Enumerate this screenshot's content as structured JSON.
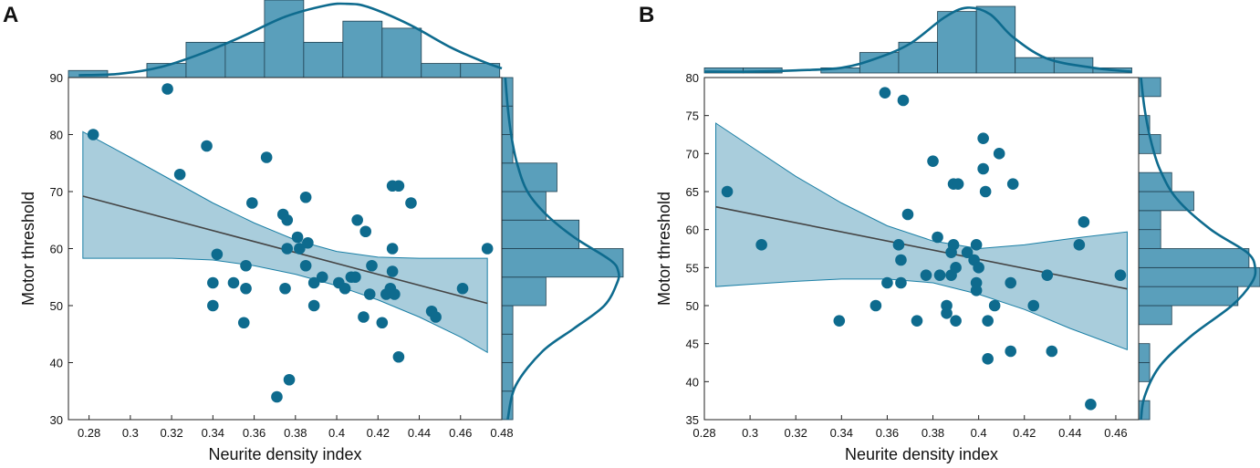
{
  "colors": {
    "point": "#0e6b8e",
    "hist_fill": "#5a9fbb",
    "hist_edge": "#1f3f4f",
    "band_fill": "#a9cddc",
    "band_edge": "#1a7fa5",
    "kde": "#0e6b8e",
    "fit_line": "#444444"
  },
  "chart_data": [
    {
      "panel": "A",
      "type": "scatter",
      "xlabel": "Neurite density index",
      "ylabel": "Motor threshold",
      "xlim": [
        0.27,
        0.48
      ],
      "ylim": [
        30,
        90
      ],
      "xticks": [
        0.28,
        0.3,
        0.32,
        0.34,
        0.36,
        0.38,
        0.4,
        0.42,
        0.44,
        0.46,
        0.48
      ],
      "xtick_labels": [
        "0.28",
        "0.3",
        "0.32",
        "0.34",
        "0.36",
        "0.38",
        "0.4",
        "0.42",
        "0.44",
        "0.46",
        "0.48"
      ],
      "yticks": [
        30,
        40,
        50,
        60,
        70,
        80,
        90
      ],
      "ytick_labels": [
        "30",
        "40",
        "50",
        "60",
        "70",
        "80",
        "90"
      ],
      "points": [
        [
          0.282,
          80
        ],
        [
          0.318,
          88
        ],
        [
          0.324,
          73
        ],
        [
          0.337,
          78
        ],
        [
          0.366,
          76
        ],
        [
          0.342,
          59
        ],
        [
          0.34,
          54
        ],
        [
          0.34,
          50
        ],
        [
          0.35,
          54
        ],
        [
          0.356,
          53
        ],
        [
          0.356,
          57
        ],
        [
          0.355,
          47
        ],
        [
          0.359,
          68
        ],
        [
          0.374,
          66
        ],
        [
          0.376,
          65
        ],
        [
          0.376,
          60
        ],
        [
          0.375,
          53
        ],
        [
          0.377,
          37
        ],
        [
          0.371,
          34
        ],
        [
          0.381,
          62
        ],
        [
          0.382,
          60
        ],
        [
          0.385,
          69
        ],
        [
          0.386,
          61
        ],
        [
          0.385,
          57
        ],
        [
          0.389,
          54
        ],
        [
          0.389,
          50
        ],
        [
          0.393,
          55
        ],
        [
          0.401,
          54
        ],
        [
          0.404,
          53
        ],
        [
          0.407,
          55
        ],
        [
          0.409,
          55
        ],
        [
          0.41,
          65
        ],
        [
          0.413,
          48
        ],
        [
          0.414,
          63
        ],
        [
          0.417,
          57
        ],
        [
          0.416,
          52
        ],
        [
          0.422,
          47
        ],
        [
          0.424,
          52
        ],
        [
          0.426,
          53
        ],
        [
          0.427,
          60
        ],
        [
          0.427,
          56
        ],
        [
          0.428,
          52
        ],
        [
          0.427,
          71
        ],
        [
          0.43,
          71
        ],
        [
          0.43,
          41
        ],
        [
          0.436,
          68
        ],
        [
          0.446,
          49
        ],
        [
          0.448,
          48
        ],
        [
          0.461,
          53
        ],
        [
          0.473,
          60
        ]
      ],
      "fit": {
        "x": [
          0.277,
          0.473
        ],
        "y": [
          69.2,
          50.4
        ]
      },
      "ci_band": {
        "x": [
          0.277,
          0.3,
          0.32,
          0.34,
          0.36,
          0.38,
          0.4,
          0.42,
          0.44,
          0.46,
          0.473
        ],
        "upper": [
          80.5,
          76.0,
          72.0,
          68.0,
          64.5,
          61.5,
          59.5,
          58.5,
          58.3,
          58.3,
          58.3
        ],
        "lower": [
          58.3,
          58.3,
          58.3,
          58.0,
          57.0,
          55.5,
          53.5,
          51.0,
          48.0,
          44.5,
          41.8
        ]
      },
      "top_hist": {
        "edges": [
          0.27,
          0.289,
          0.308,
          0.327,
          0.346,
          0.365,
          0.384,
          0.403,
          0.422,
          0.441,
          0.46,
          0.479
        ],
        "counts": [
          1,
          0,
          2,
          5,
          5,
          11,
          5,
          8,
          7,
          2,
          2
        ]
      },
      "right_hist": {
        "edges": [
          30,
          35,
          40,
          45,
          50,
          55,
          60,
          65,
          70,
          75,
          80,
          85,
          90
        ],
        "counts": [
          1,
          1,
          1,
          1,
          4,
          11,
          7,
          4,
          5,
          1,
          1,
          1
        ]
      },
      "top_kde": {
        "x": [
          0.275,
          0.295,
          0.315,
          0.335,
          0.355,
          0.375,
          0.395,
          0.405,
          0.415,
          0.435,
          0.455,
          0.47,
          0.48
        ],
        "density": [
          0.03,
          0.05,
          0.14,
          0.32,
          0.55,
          0.8,
          0.95,
          0.97,
          0.93,
          0.7,
          0.4,
          0.22,
          0.12
        ]
      },
      "right_kde": {
        "y": [
          30,
          36,
          42,
          46,
          50,
          54,
          56,
          58,
          62,
          66,
          70,
          75,
          80,
          85,
          90
        ],
        "density": [
          0.05,
          0.12,
          0.35,
          0.62,
          0.88,
          0.99,
          1.0,
          0.93,
          0.62,
          0.38,
          0.22,
          0.13,
          0.08,
          0.05,
          0.03
        ]
      }
    },
    {
      "panel": "B",
      "type": "scatter",
      "xlabel": "Neurite density index",
      "ylabel": "Motor threshold",
      "xlim": [
        0.28,
        0.47
      ],
      "ylim": [
        35,
        80
      ],
      "xticks": [
        0.28,
        0.3,
        0.32,
        0.34,
        0.36,
        0.38,
        0.4,
        0.42,
        0.44,
        0.46
      ],
      "xtick_labels": [
        "0.28",
        "0.3",
        "0.32",
        "0.34",
        "0.36",
        "0.38",
        "0.4",
        "0.42",
        "0.44",
        "0.46"
      ],
      "yticks": [
        35,
        40,
        45,
        50,
        55,
        60,
        65,
        70,
        75,
        80
      ],
      "ytick_labels": [
        "35",
        "40",
        "45",
        "50",
        "55",
        "60",
        "65",
        "70",
        "75",
        "80"
      ],
      "points": [
        [
          0.29,
          65
        ],
        [
          0.305,
          58
        ],
        [
          0.339,
          48
        ],
        [
          0.355,
          50
        ],
        [
          0.359,
          78
        ],
        [
          0.36,
          53
        ],
        [
          0.365,
          58
        ],
        [
          0.366,
          56
        ],
        [
          0.366,
          53
        ],
        [
          0.367,
          77
        ],
        [
          0.369,
          62
        ],
        [
          0.373,
          48
        ],
        [
          0.377,
          54
        ],
        [
          0.38,
          69
        ],
        [
          0.382,
          59
        ],
        [
          0.383,
          54
        ],
        [
          0.386,
          50
        ],
        [
          0.386,
          49
        ],
        [
          0.388,
          54
        ],
        [
          0.388,
          57
        ],
        [
          0.389,
          58
        ],
        [
          0.389,
          66
        ],
        [
          0.39,
          55
        ],
        [
          0.39,
          48
        ],
        [
          0.391,
          66
        ],
        [
          0.395,
          57
        ],
        [
          0.398,
          56
        ],
        [
          0.399,
          58
        ],
        [
          0.399,
          53
        ],
        [
          0.4,
          55
        ],
        [
          0.399,
          52
        ],
        [
          0.402,
          72
        ],
        [
          0.402,
          68
        ],
        [
          0.403,
          65
        ],
        [
          0.404,
          48
        ],
        [
          0.404,
          43
        ],
        [
          0.407,
          50
        ],
        [
          0.409,
          70
        ],
        [
          0.414,
          53
        ],
        [
          0.414,
          44
        ],
        [
          0.415,
          66
        ],
        [
          0.424,
          50
        ],
        [
          0.43,
          54
        ],
        [
          0.432,
          44
        ],
        [
          0.444,
          58
        ],
        [
          0.446,
          61
        ],
        [
          0.449,
          37
        ],
        [
          0.462,
          54
        ]
      ],
      "fit": {
        "x": [
          0.285,
          0.465
        ],
        "y": [
          63.0,
          52.2
        ]
      },
      "ci_band": {
        "x": [
          0.285,
          0.3,
          0.32,
          0.34,
          0.36,
          0.38,
          0.4,
          0.42,
          0.44,
          0.465
        ],
        "upper": [
          74.0,
          71.0,
          67.0,
          63.5,
          60.5,
          58.5,
          57.5,
          58.0,
          58.8,
          59.7
        ],
        "lower": [
          52.5,
          52.8,
          53.2,
          53.5,
          53.5,
          53.0,
          51.5,
          49.5,
          47.0,
          44.2
        ]
      },
      "top_hist": {
        "edges": [
          0.28,
          0.297,
          0.314,
          0.331,
          0.348,
          0.365,
          0.382,
          0.399,
          0.416,
          0.433,
          0.45,
          0.467
        ],
        "counts": [
          1,
          1,
          0,
          1,
          4,
          6,
          12,
          13,
          3,
          3,
          1
        ]
      },
      "right_hist": {
        "edges": [
          35,
          37.5,
          40,
          42.5,
          45,
          47.5,
          50,
          52.5,
          55,
          57.5,
          60,
          62.5,
          65,
          67.5,
          70,
          72.5,
          75,
          77.5,
          80
        ],
        "counts": [
          1,
          0,
          1,
          1,
          0,
          3,
          9,
          11,
          10,
          2,
          2,
          5,
          3,
          0,
          2,
          1,
          0,
          2
        ]
      },
      "top_kde": {
        "x": [
          0.28,
          0.3,
          0.32,
          0.34,
          0.355,
          0.37,
          0.385,
          0.395,
          0.405,
          0.415,
          0.43,
          0.45,
          0.467
        ],
        "density": [
          0.02,
          0.02,
          0.04,
          0.08,
          0.22,
          0.45,
          0.85,
          1.0,
          0.9,
          0.55,
          0.22,
          0.08,
          0.02
        ]
      },
      "right_kde": {
        "y": [
          35,
          38,
          42,
          46,
          50,
          53,
          55,
          57,
          60,
          64,
          68,
          72,
          76,
          80
        ],
        "density": [
          0.02,
          0.05,
          0.18,
          0.45,
          0.8,
          0.97,
          1.0,
          0.93,
          0.62,
          0.33,
          0.18,
          0.1,
          0.05,
          0.02
        ]
      }
    }
  ]
}
